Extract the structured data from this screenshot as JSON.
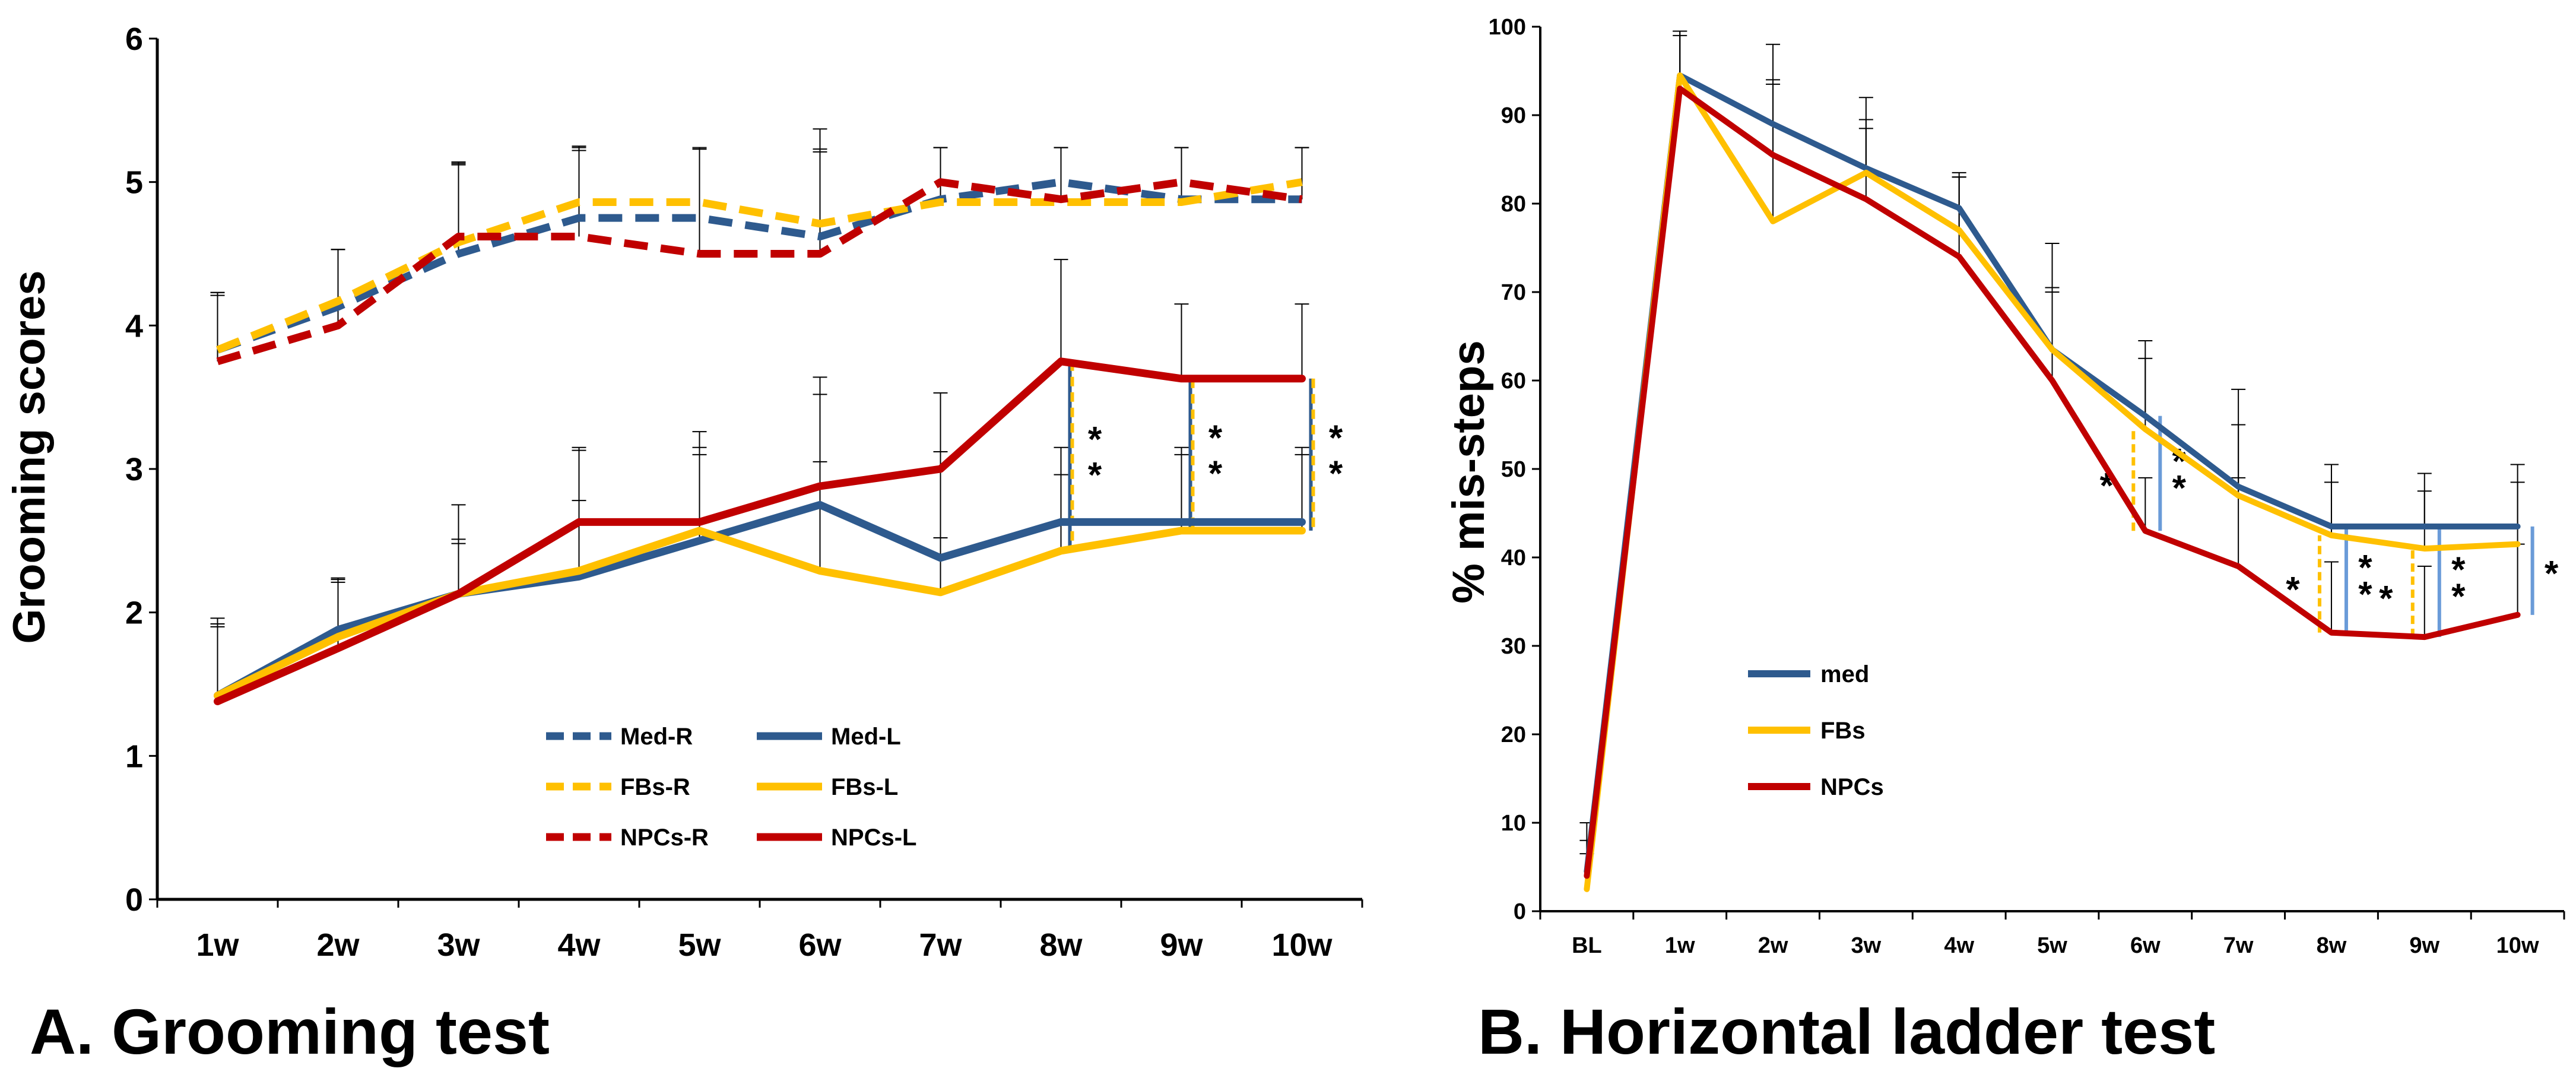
{
  "colors": {
    "med": "#2E5A8E",
    "fbs": "#FFC000",
    "npcs": "#C00000",
    "axis": "#000000",
    "bracket_blue": "#6A9BD8"
  },
  "chart_data": [
    {
      "type": "line",
      "title": "A. Grooming test",
      "xlabel": "",
      "ylabel": "Grooming scores",
      "categories": [
        "1w",
        "2w",
        "3w",
        "4w",
        "5w",
        "6w",
        "7w",
        "8w",
        "9w",
        "10w"
      ],
      "yticks": [
        "0",
        "1",
        "2",
        "3",
        "4",
        "5",
        "6"
      ],
      "ylim": [
        0,
        6
      ],
      "series": [
        {
          "name": "Med-R",
          "color": "#2E5A8E",
          "dashed": true,
          "values": [
            3.83,
            4.13,
            4.5,
            4.75,
            4.75,
            4.62,
            4.88,
            5.0,
            4.88,
            4.88
          ],
          "err": [
            0.4,
            0.4,
            0.62,
            0.5,
            0.48,
            0.75,
            0.36,
            0.24,
            0.36,
            0.36
          ]
        },
        {
          "name": "FBs-R",
          "color": "#FFC000",
          "dashed": true,
          "values": [
            3.83,
            4.17,
            4.58,
            4.86,
            4.86,
            4.71,
            4.86,
            4.86,
            4.86,
            5.0
          ],
          "err": [
            0.4,
            0.36,
            0.55,
            0.38,
            0.38,
            0.5,
            0.38,
            0.38,
            0.38,
            0.24
          ]
        },
        {
          "name": "NPCs-R",
          "color": "#C00000",
          "dashed": true,
          "values": [
            3.75,
            4.0,
            4.62,
            4.62,
            4.5,
            4.5,
            5.0,
            4.88,
            5.0,
            4.88
          ],
          "err": [
            0.46,
            0.53,
            0.52,
            0.6,
            0.73,
            0.73,
            0.24,
            0.36,
            0.24,
            0.36
          ]
        },
        {
          "name": "Med-L",
          "color": "#2E5A8E",
          "dashed": false,
          "values": [
            1.42,
            1.88,
            2.13,
            2.25,
            2.5,
            2.75,
            2.38,
            2.63,
            2.63,
            2.63
          ],
          "err": [
            0.5,
            0.35,
            0.62,
            0.88,
            0.76,
            0.89,
            0.74,
            0.52,
            0.52,
            0.52
          ]
        },
        {
          "name": "FBs-L",
          "color": "#FFC000",
          "dashed": false,
          "values": [
            1.42,
            1.83,
            2.13,
            2.29,
            2.57,
            2.29,
            2.14,
            2.43,
            2.57,
            2.57
          ],
          "err": [
            0.54,
            0.41,
            0.38,
            0.49,
            0.53,
            0.76,
            0.38,
            0.53,
            0.53,
            0.53
          ]
        },
        {
          "name": "NPCs-L",
          "color": "#C00000",
          "dashed": false,
          "values": [
            1.38,
            1.75,
            2.13,
            2.63,
            2.63,
            2.88,
            3.0,
            3.75,
            3.63,
            3.63
          ],
          "err": [
            0.52,
            0.46,
            0.35,
            0.52,
            0.52,
            0.64,
            0.53,
            0.71,
            0.52,
            0.52
          ]
        }
      ],
      "legend": [
        "Med-R",
        "Med-L",
        "FBs-R",
        "FBs-L",
        "NPCs-R",
        "NPCs-L"
      ],
      "annotations": [
        {
          "category": "8w",
          "text": "**"
        },
        {
          "category": "9w",
          "text": "**"
        },
        {
          "category": "10w",
          "text": "**"
        }
      ]
    },
    {
      "type": "line",
      "title": "B. Horizontal ladder test",
      "xlabel": "",
      "ylabel": "% mis-steps",
      "categories": [
        "BL",
        "1w",
        "2w",
        "3w",
        "4w",
        "5w",
        "6w",
        "7w",
        "8w",
        "9w",
        "10w"
      ],
      "yticks": [
        "0",
        "10",
        "20",
        "30",
        "40",
        "50",
        "60",
        "70",
        "80",
        "90",
        "100"
      ],
      "ylim": [
        0,
        100
      ],
      "series": [
        {
          "name": "med",
          "color": "#2E5A8E",
          "values": [
            4.5,
            94.5,
            89.0,
            84.0,
            79.5,
            63.5,
            56.0,
            48.0,
            43.5,
            43.5,
            43.5
          ],
          "err": [
            5.5,
            5.0,
            9.0,
            8.0,
            4.0,
            12.0,
            8.5,
            11.0,
            7.0,
            6.0,
            7.0
          ]
        },
        {
          "name": "FBs",
          "color": "#FFC000",
          "values": [
            2.5,
            94.5,
            78.0,
            83.5,
            77.0,
            63.5,
            54.5,
            47.0,
            42.5,
            41.0,
            41.5
          ],
          "err": [
            4.0,
            5.0,
            16.0,
            6.0,
            6.0,
            7.0,
            8.0,
            8.0,
            6.0,
            6.5,
            7.0
          ]
        },
        {
          "name": "NPCs",
          "color": "#C00000",
          "values": [
            4.0,
            93.0,
            85.5,
            80.5,
            74.0,
            60.0,
            43.0,
            39.0,
            31.5,
            31.0,
            33.5
          ],
          "err": [
            4.0,
            6.0,
            8.0,
            8.0,
            9.0,
            10.0,
            6.0,
            10.0,
            8.0,
            8.0,
            8.0
          ]
        }
      ],
      "legend": [
        "med",
        "FBs",
        "NPCs"
      ],
      "annotations": [
        {
          "category": "6w",
          "text": "*",
          "pair": "NPCs-FBs"
        },
        {
          "category": "6w",
          "text": "**",
          "pair": "NPCs-med"
        },
        {
          "category": "8w",
          "text": "*",
          "pair": "NPCs-FBs"
        },
        {
          "category": "8w",
          "text": "**",
          "pair": "NPCs-med"
        },
        {
          "category": "9w",
          "text": "*",
          "pair": "NPCs-FBs"
        },
        {
          "category": "9w",
          "text": "**",
          "pair": "NPCs-med"
        },
        {
          "category": "10w",
          "text": "*",
          "pair": "NPCs-med"
        }
      ]
    }
  ]
}
